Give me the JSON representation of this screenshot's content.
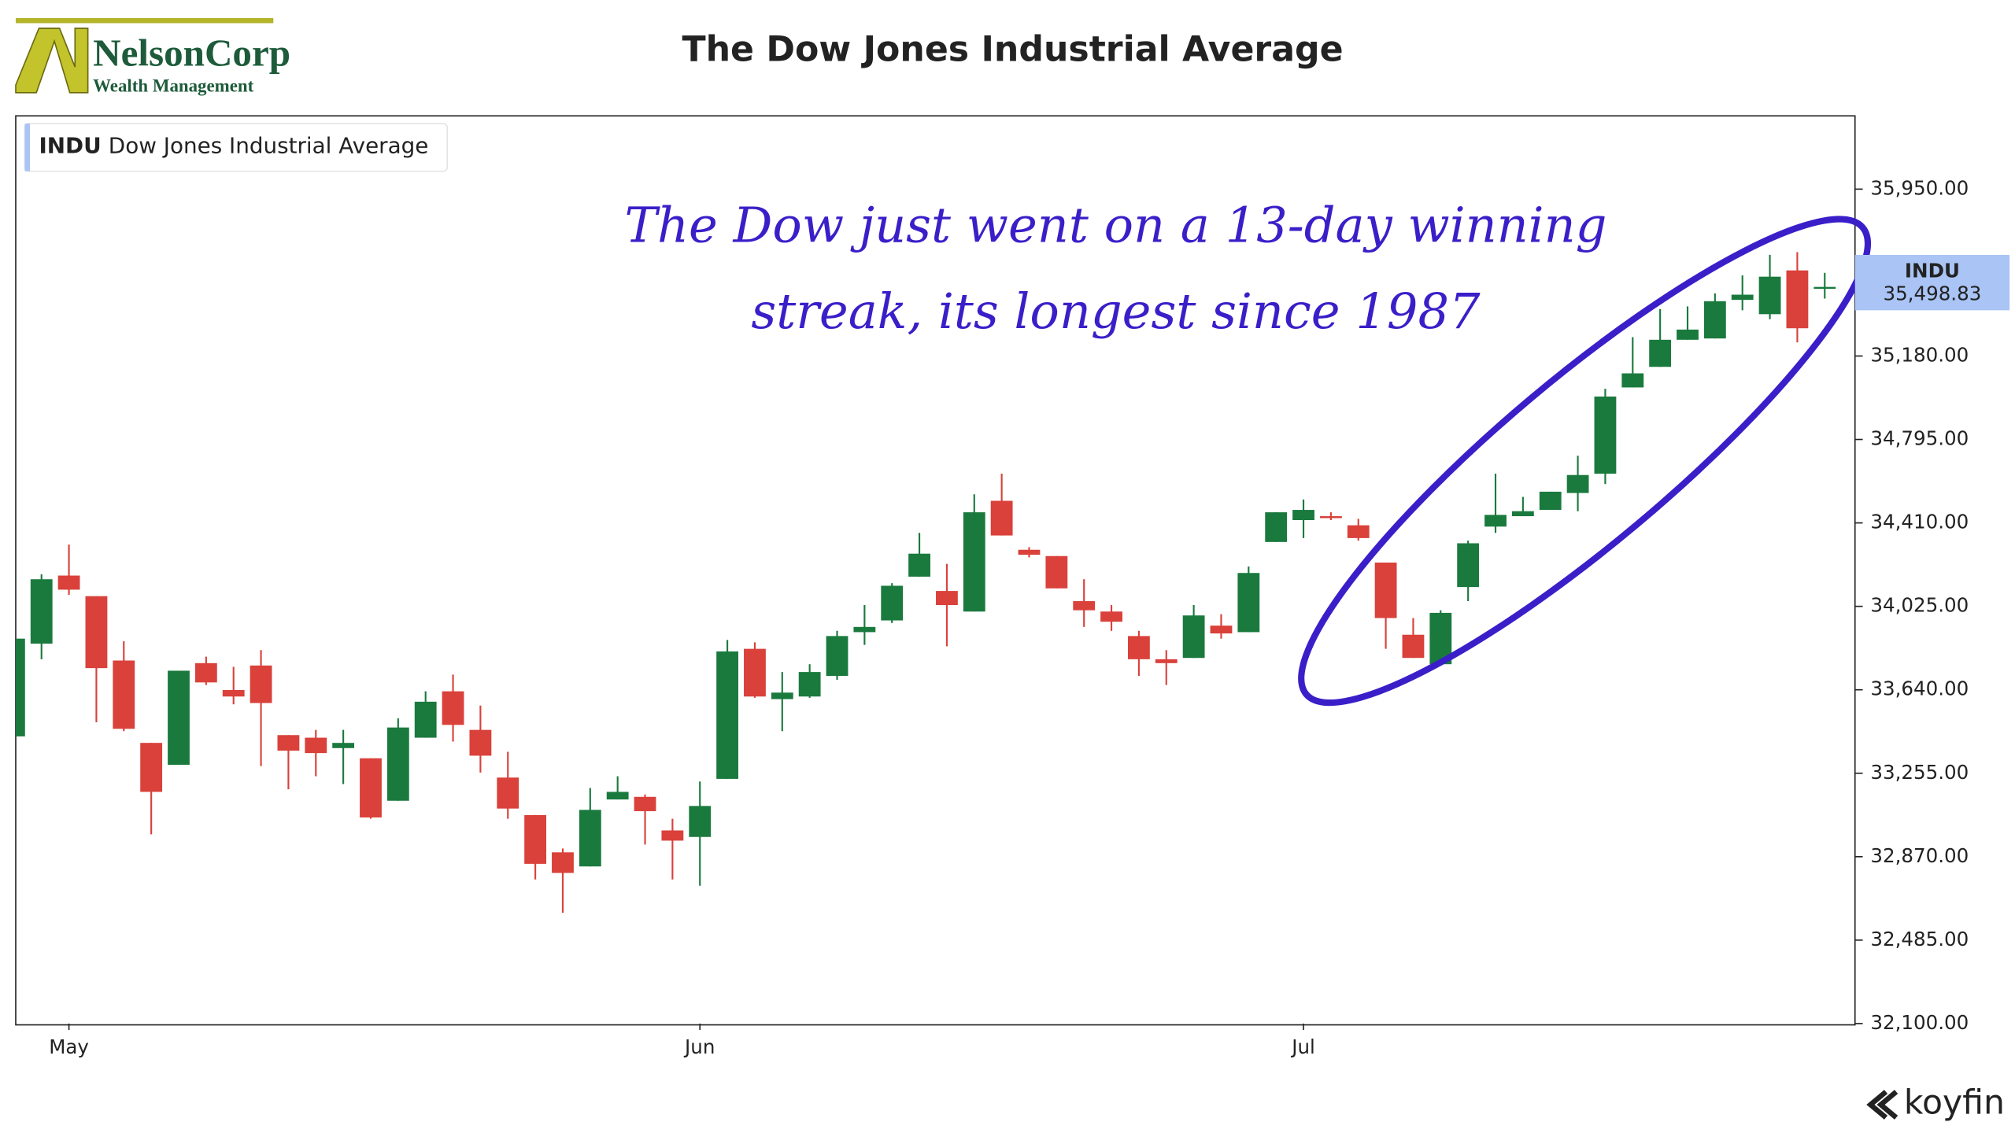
{
  "logo": {
    "name": "NelsonCorp",
    "tagline": "Wealth Management"
  },
  "footer": "koyfin",
  "chart_data": {
    "type": "candlestick",
    "title": "The Dow Jones Industrial Average",
    "legend": {
      "symbol": "INDU",
      "name": "Dow Jones Industrial Average"
    },
    "annotation": [
      "The Dow just went on a 13-day winning",
      "streak, its longest since 1987"
    ],
    "last_price": {
      "name": "INDU",
      "value": 35498.83,
      "label": "35,498.83"
    },
    "up_color": "#1a7a3e",
    "down_color": "#d9413a",
    "annotation_color": "#3a1fc9",
    "categories": [
      null,
      null,
      "May",
      null,
      null,
      null,
      null,
      null,
      null,
      null,
      null,
      null,
      null,
      null,
      null,
      null,
      null,
      null,
      null,
      null,
      null,
      null,
      null,
      null,
      null,
      "Jun",
      null,
      null,
      null,
      null,
      null,
      null,
      null,
      null,
      null,
      null,
      null,
      null,
      null,
      null,
      null,
      null,
      null,
      null,
      null,
      null,
      null,
      "Jul",
      null,
      null,
      null,
      null,
      null,
      null,
      null,
      null,
      null,
      null,
      null,
      null,
      null,
      null,
      null,
      null,
      null,
      null,
      null
    ],
    "open": [
      33425,
      33853,
      34167,
      34072,
      33775,
      33395,
      33294,
      33763,
      33639,
      33752,
      33431,
      33419,
      33371,
      33324,
      33128,
      33419,
      33633,
      33455,
      33235,
      33062,
      32890,
      32825,
      33134,
      33146,
      32991,
      32961,
      33229,
      33829,
      33597,
      33609,
      33704,
      33906,
      33960,
      34162,
      34096,
      34001,
      34512,
      34286,
      34257,
      34049,
      34001,
      33888,
      33781,
      33787,
      33936,
      33906,
      34322,
      34423,
      34441,
      34399,
      34227,
      33894,
      33758,
      34114,
      34393,
      34441,
      34470,
      34548,
      34637,
      35035,
      35130,
      35255,
      35261,
      35439,
      35373,
      35575,
      35490
    ],
    "high": [
      33912,
      34173,
      34310,
      34072,
      33864,
      33395,
      33728,
      33793,
      33746,
      33823,
      33431,
      33455,
      33455,
      33324,
      33508,
      33633,
      33710,
      33567,
      33354,
      33062,
      32908,
      33187,
      33241,
      33157,
      33045,
      33217,
      33870,
      33859,
      33722,
      33758,
      33912,
      34031,
      34132,
      34364,
      34221,
      34542,
      34637,
      34298,
      34257,
      34150,
      34031,
      33912,
      33823,
      34031,
      33989,
      34209,
      34459,
      34518,
      34459,
      34429,
      34227,
      33971,
      34007,
      34328,
      34637,
      34530,
      34554,
      34720,
      35029,
      35267,
      35397,
      35409,
      35469,
      35552,
      35647,
      35659,
      35564
    ],
    "low": [
      33425,
      33781,
      34078,
      33490,
      33449,
      32973,
      33294,
      33662,
      33573,
      33288,
      33181,
      33241,
      33205,
      33045,
      33128,
      33419,
      33401,
      33258,
      33045,
      32765,
      32611,
      32825,
      33134,
      32926,
      32765,
      32736,
      33229,
      33603,
      33449,
      33603,
      33686,
      33847,
      33948,
      34162,
      33841,
      34001,
      34352,
      34251,
      34108,
      33930,
      33912,
      33704,
      33662,
      33787,
      33876,
      33906,
      34322,
      34340,
      34423,
      34328,
      33829,
      33787,
      33758,
      34049,
      34364,
      34441,
      34470,
      34464,
      34589,
      35035,
      35130,
      35255,
      35261,
      35391,
      35350,
      35243,
      35445
    ],
    "close": [
      33876,
      34150,
      34102,
      33740,
      33460,
      33169,
      33728,
      33674,
      33609,
      33579,
      33359,
      33348,
      33395,
      33051,
      33466,
      33585,
      33478,
      33336,
      33092,
      32837,
      32795,
      33086,
      33169,
      33080,
      32944,
      33104,
      33817,
      33609,
      33627,
      33722,
      33888,
      33930,
      34120,
      34268,
      34031,
      34459,
      34352,
      34263,
      34108,
      34007,
      33954,
      33781,
      33763,
      33983,
      33900,
      34179,
      34459,
      34470,
      34435,
      34340,
      33971,
      33787,
      33995,
      34316,
      34447,
      34464,
      34554,
      34631,
      34993,
      35100,
      35255,
      35302,
      35433,
      35463,
      35546,
      35308,
      35498.83
    ],
    "ylim": [
      32100,
      36288
    ],
    "yticks": [
      {
        "value": 32100,
        "label": "32,100.00"
      },
      {
        "value": 32485,
        "label": "32,485.00"
      },
      {
        "value": 32870,
        "label": "32,870.00"
      },
      {
        "value": 33255,
        "label": "33,255.00"
      },
      {
        "value": 33640,
        "label": "33,640.00"
      },
      {
        "value": 34025,
        "label": "34,025.00"
      },
      {
        "value": 34410,
        "label": "34,410.00"
      },
      {
        "value": 34795,
        "label": "34,795.00"
      },
      {
        "value": 35180,
        "label": "35,180.00"
      },
      {
        "value": 35950,
        "label": "35,950.00"
      }
    ]
  }
}
